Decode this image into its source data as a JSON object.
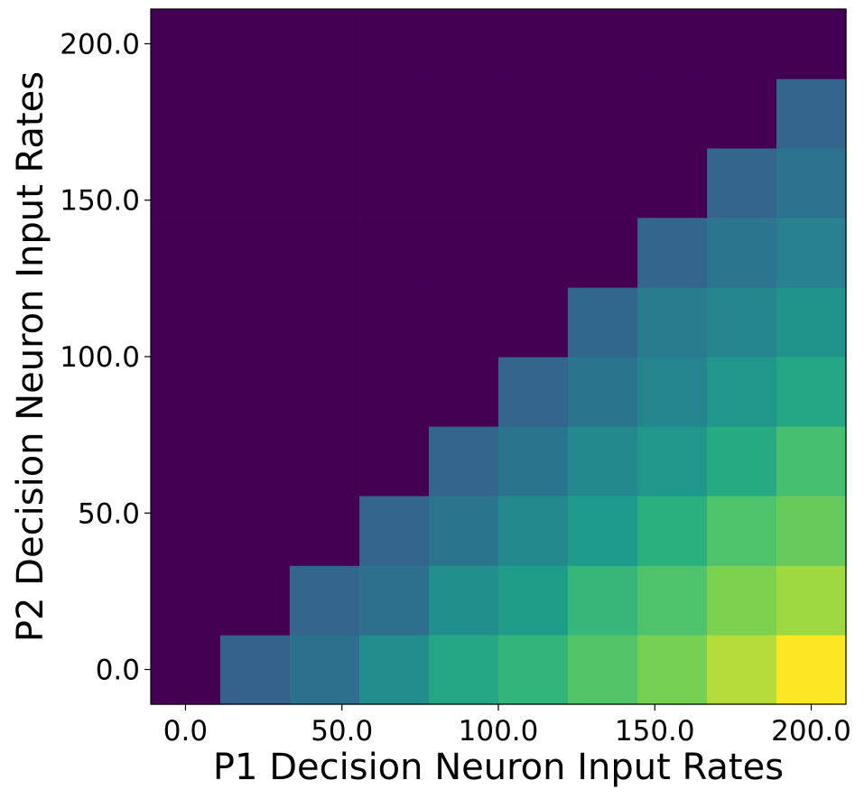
{
  "chart_data": {
    "type": "heatmap",
    "title": "",
    "xlabel": "P1 Decision Neuron Input Rates",
    "ylabel": "P2 Decision Neuron Input Rates",
    "x": [
      0,
      22.2,
      44.4,
      66.7,
      88.9,
      111.1,
      133.3,
      155.6,
      177.8,
      200
    ],
    "y": [
      0,
      22.2,
      44.4,
      66.7,
      88.9,
      111.1,
      133.3,
      155.6,
      177.8,
      200
    ],
    "xlim": [
      -11.1,
      211.1
    ],
    "ylim": [
      -11.1,
      211.1
    ],
    "xticks": [
      0,
      50,
      100,
      150,
      200
    ],
    "xtick_labels": [
      "0.0",
      "50.0",
      "100.0",
      "150.0",
      "200.0"
    ],
    "yticks": [
      0,
      50,
      100,
      150,
      200
    ],
    "ytick_labels": [
      "0.0",
      "50.0",
      "100.0",
      "150.0",
      "200.0"
    ],
    "colormap": "viridis",
    "value_range": [
      0,
      1
    ],
    "grid": false,
    "legend": false,
    "values": [
      [
        0,
        0.34,
        0.4,
        0.53,
        0.65,
        0.72,
        0.8,
        0.87,
        0.94,
        1.0
      ],
      [
        0,
        0,
        0.35,
        0.4,
        0.55,
        0.61,
        0.73,
        0.79,
        0.88,
        0.92
      ],
      [
        0,
        0,
        0,
        0.35,
        0.42,
        0.52,
        0.6,
        0.7,
        0.79,
        0.84
      ],
      [
        0,
        0,
        0,
        0,
        0.35,
        0.42,
        0.52,
        0.58,
        0.67,
        0.77
      ],
      [
        0,
        0,
        0,
        0,
        0,
        0.35,
        0.42,
        0.5,
        0.58,
        0.65
      ],
      [
        0,
        0,
        0,
        0,
        0,
        0,
        0.36,
        0.45,
        0.5,
        0.57
      ],
      [
        0,
        0,
        0,
        0,
        0,
        0,
        0,
        0.35,
        0.43,
        0.48
      ],
      [
        0,
        0,
        0,
        0,
        0,
        0,
        0,
        0,
        0.35,
        0.41
      ],
      [
        0,
        0,
        0,
        0,
        0,
        0,
        0,
        0,
        0,
        0.35
      ],
      [
        0,
        0,
        0,
        0,
        0,
        0,
        0,
        0,
        0,
        0
      ]
    ]
  }
}
